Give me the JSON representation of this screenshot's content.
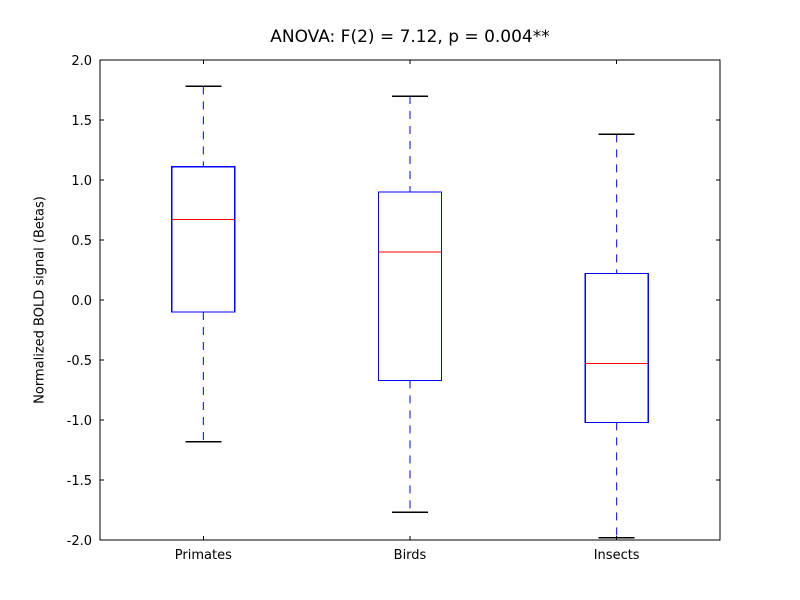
{
  "chart_data": {
    "type": "box",
    "title": "ANOVA: F(2) = 7.12, p = 0.004**",
    "xlabel": "",
    "ylabel": "Normalized BOLD signal (Betas)",
    "categories": [
      "Primates",
      "Birds",
      "Insects"
    ],
    "series": [
      {
        "name": "Primates",
        "whisker_low": -1.18,
        "q1": -0.1,
        "median": 0.67,
        "q3": 1.11,
        "whisker_high": 1.78
      },
      {
        "name": "Birds",
        "whisker_low": -1.77,
        "q1": -0.67,
        "median": 0.4,
        "q3": 0.9,
        "whisker_high": 1.7
      },
      {
        "name": "Insects",
        "whisker_low": -1.98,
        "q1": -1.02,
        "median": -0.53,
        "q3": 0.22,
        "whisker_high": 1.38
      }
    ],
    "ylim": [
      -2.0,
      2.0
    ],
    "ytick_values": [
      2.0,
      1.5,
      1.0,
      0.5,
      0.0,
      -0.5,
      -1.0,
      -1.5,
      -2.0
    ],
    "ytick_labels": [
      "2.0",
      "1.5",
      "1.0",
      "0.5",
      "0.0",
      "-0.5",
      "-1.0",
      "-1.5",
      "-2.0"
    ],
    "grid": false,
    "legend": "none",
    "colors": {
      "box": "#0000ff",
      "median": "#ff0000",
      "whisker": "#0000ff",
      "cap": "#000000",
      "axis": "#000000",
      "background": "#ffffff"
    }
  }
}
